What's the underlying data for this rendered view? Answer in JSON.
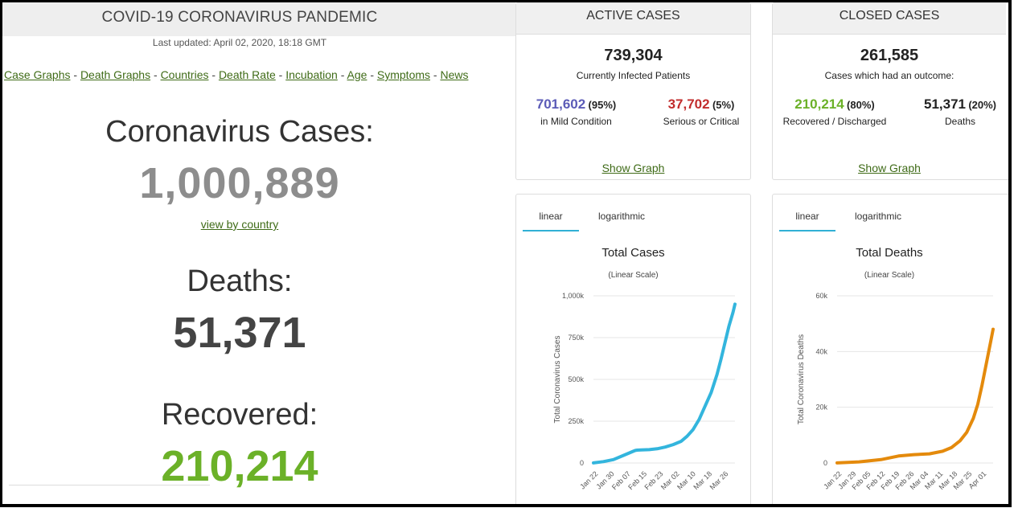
{
  "header": {
    "title": "COVID-19 CORONAVIRUS PANDEMIC",
    "last_updated": "Last updated: April 02, 2020, 18:18 GMT"
  },
  "nav": {
    "links": [
      "Case Graphs",
      "Death Graphs",
      "Countries",
      "Death Rate",
      "Incubation",
      "Age",
      "Symptoms",
      "News"
    ],
    "separator": "-"
  },
  "totals": {
    "cases_label": "Coronavirus Cases:",
    "cases_value": "1,000,889",
    "view_by_country": "view by country",
    "deaths_label": "Deaths:",
    "deaths_value": "51,371",
    "recovered_label": "Recovered:",
    "recovered_value": "210,214"
  },
  "active": {
    "title": "ACTIVE CASES",
    "total": "739,304",
    "subtitle": "Currently Infected Patients",
    "mild_value": "701,602",
    "mild_pct": "(95%)",
    "mild_label": "in Mild Condition",
    "serious_value": "37,702",
    "serious_pct": "(5%)",
    "serious_label": "Serious or Critical",
    "show_graph": "Show Graph"
  },
  "closed": {
    "title": "CLOSED CASES",
    "total": "261,585",
    "subtitle": "Cases which had an outcome:",
    "recovered_value": "210,214",
    "recovered_pct": "(80%)",
    "recovered_label": "Recovered / Discharged",
    "deaths_value": "51,371",
    "deaths_pct": "(20%)",
    "deaths_label": "Deaths",
    "show_graph": "Show Graph"
  },
  "colors": {
    "mild": "#5b5bb7",
    "serious": "#c22d2d",
    "recovered": "#6bb128",
    "link": "#3f6b17",
    "cases_line": "#33b5dd",
    "deaths_line": "#e48a0c",
    "tab_underline": "#31b0d5"
  },
  "chart_data": [
    {
      "type": "line",
      "title": "Total Cases",
      "subtitle": "(Linear Scale)",
      "tabs": [
        "linear",
        "logarithmic"
      ],
      "active_tab": "linear",
      "ylabel": "Total Coronavirus Cases",
      "yticks": [
        "0",
        "250k",
        "500k",
        "750k",
        "1,000k"
      ],
      "ytick_values": [
        0,
        250000,
        500000,
        750000,
        1000000
      ],
      "ylim": [
        0,
        1000000
      ],
      "xticks": [
        "Jan 22",
        "Jan 30",
        "Feb 07",
        "Feb 15",
        "Feb 23",
        "Mar 02",
        "Mar 10",
        "Mar 18",
        "Mar 26"
      ],
      "grid": true,
      "legend": "none",
      "series": [
        {
          "x": [
            0,
            5,
            10,
            15,
            18,
            20,
            21,
            22,
            24,
            28,
            32,
            36,
            40,
            44,
            47,
            50,
            53,
            56,
            59,
            62,
            64,
            66,
            68,
            70,
            71
          ],
          "values": [
            500,
            8000,
            20000,
            45000,
            60000,
            70000,
            75000,
            77000,
            78000,
            80000,
            85000,
            95000,
            110000,
            130000,
            160000,
            200000,
            260000,
            340000,
            420000,
            530000,
            620000,
            720000,
            820000,
            900000,
            950000
          ]
        }
      ]
    },
    {
      "type": "line",
      "title": "Total Deaths",
      "subtitle": "(Linear Scale)",
      "tabs": [
        "linear",
        "logarithmic"
      ],
      "active_tab": "linear",
      "ylabel": "Total Coronavirus Deaths",
      "yticks": [
        "0",
        "20k",
        "40k",
        "60k"
      ],
      "ytick_values": [
        0,
        20000,
        40000,
        60000
      ],
      "ylim": [
        0,
        60000
      ],
      "xticks": [
        "Jan 22",
        "Jan 29",
        "Feb 05",
        "Feb 12",
        "Feb 19",
        "Feb 26",
        "Mar 04",
        "Mar 11",
        "Mar 18",
        "Mar 25",
        "Apr 01"
      ],
      "grid": true,
      "legend": "none",
      "series": [
        {
          "x": [
            0,
            10,
            20,
            28,
            35,
            42,
            48,
            52,
            56,
            59,
            62,
            64,
            66,
            68,
            70,
            71
          ],
          "values": [
            17,
            400,
            1200,
            2500,
            3000,
            3300,
            4200,
            5500,
            8000,
            11000,
            16000,
            21000,
            28000,
            36000,
            44000,
            48000
          ]
        }
      ]
    }
  ]
}
